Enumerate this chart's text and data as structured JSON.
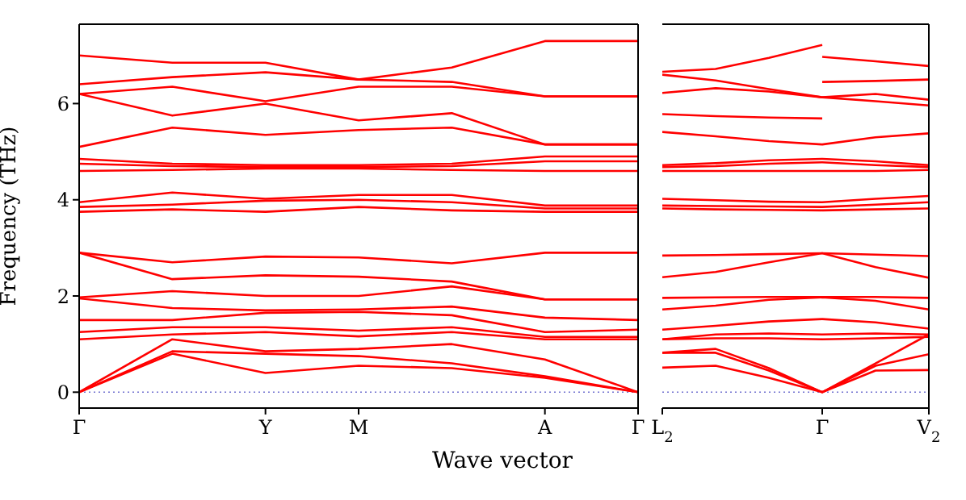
{
  "chart_data": [
    {
      "type": "line",
      "xlabel": "Wave vector",
      "ylabel": "Frequency (THz)",
      "categories": [
        "Γ",
        null,
        "Y",
        "M",
        null,
        "A",
        "Γ"
      ],
      "ylim": [
        -0.33,
        7.65
      ],
      "yticks": [
        0,
        2,
        4,
        6
      ],
      "ref_lines": [
        {
          "axis": "y",
          "value": 0,
          "color": "#7070d0",
          "line_style": "dotted"
        }
      ],
      "series": [
        {
          "color": "#ff0000",
          "values": [
            7.0,
            6.85,
            6.85,
            6.5,
            6.75,
            7.3,
            7.3
          ]
        },
        {
          "color": "#ff0000",
          "values": [
            6.4,
            6.55,
            6.65,
            6.5,
            6.45,
            6.15,
            6.15
          ]
        },
        {
          "color": "#ff0000",
          "values": [
            6.2,
            6.35,
            6.05,
            6.35,
            6.35,
            6.15,
            6.15
          ]
        },
        {
          "color": "#ff0000",
          "values": [
            6.2,
            5.75,
            6.0,
            5.65,
            5.8,
            5.15,
            5.15
          ]
        },
        {
          "color": "#ff0000",
          "values": [
            5.1,
            5.5,
            5.35,
            5.45,
            5.5,
            5.15,
            5.15
          ]
        },
        {
          "color": "#ff0000",
          "values": [
            4.85,
            4.75,
            4.72,
            4.72,
            4.75,
            4.9,
            4.9
          ]
        },
        {
          "color": "#ff0000",
          "values": [
            4.75,
            4.7,
            4.68,
            4.68,
            4.7,
            4.8,
            4.8
          ]
        },
        {
          "color": "#ff0000",
          "values": [
            4.6,
            4.62,
            4.65,
            4.65,
            4.62,
            4.6,
            4.6
          ]
        },
        {
          "color": "#ff0000",
          "values": [
            3.95,
            4.15,
            4.02,
            4.1,
            4.1,
            3.88,
            3.88
          ]
        },
        {
          "color": "#ff0000",
          "values": [
            3.85,
            3.9,
            3.98,
            4.0,
            3.95,
            3.82,
            3.82
          ]
        },
        {
          "color": "#ff0000",
          "values": [
            3.75,
            3.8,
            3.75,
            3.85,
            3.78,
            3.75,
            3.75
          ]
        },
        {
          "color": "#ff0000",
          "values": [
            2.9,
            2.7,
            2.82,
            2.8,
            2.68,
            2.9,
            2.9
          ]
        },
        {
          "color": "#ff0000",
          "values": [
            2.9,
            2.35,
            2.43,
            2.4,
            2.3,
            1.93,
            1.93
          ]
        },
        {
          "color": "#ff0000",
          "values": [
            1.97,
            2.1,
            2.0,
            2.0,
            2.2,
            1.93,
            1.93
          ]
        },
        {
          "color": "#ff0000",
          "values": [
            1.95,
            1.75,
            1.7,
            1.72,
            1.78,
            1.55,
            1.5
          ]
        },
        {
          "color": "#ff0000",
          "values": [
            1.5,
            1.5,
            1.65,
            1.67,
            1.6,
            1.25,
            1.3
          ]
        },
        {
          "color": "#ff0000",
          "values": [
            1.25,
            1.35,
            1.35,
            1.28,
            1.35,
            1.15,
            1.15
          ]
        },
        {
          "color": "#ff0000",
          "values": [
            1.1,
            1.2,
            1.25,
            1.16,
            1.25,
            1.1,
            1.1
          ]
        },
        {
          "color": "#ff0000",
          "values": [
            0,
            1.1,
            0.85,
            0.9,
            1.0,
            0.68,
            0
          ]
        },
        {
          "color": "#ff0000",
          "values": [
            0,
            0.85,
            0.8,
            0.75,
            0.6,
            0.33,
            0
          ]
        },
        {
          "color": "#ff0000",
          "values": [
            0,
            0.8,
            0.4,
            0.55,
            0.5,
            0.3,
            0
          ]
        }
      ]
    },
    {
      "type": "line",
      "categories": [
        "L$_{2}$",
        null,
        null,
        "Γ",
        null,
        "V$_{2}$"
      ],
      "ylim": [
        -0.33,
        7.65
      ],
      "yticks": [
        0,
        2,
        4,
        6
      ],
      "tick_labels": "x",
      "ref_lines": [
        {
          "axis": "y",
          "value": 0,
          "color": "#7070d0",
          "line_style": "dotted"
        }
      ],
      "series": [
        {
          "color": "#ff0000",
          "values": [
            6.66,
            6.72,
            6.95,
            7.22,
            null,
            null
          ]
        },
        {
          "color": "#ff0000",
          "values": [
            null,
            null,
            null,
            6.97,
            6.88,
            6.78
          ]
        },
        {
          "color": "#ff0000",
          "values": [
            6.6,
            6.48,
            6.3,
            6.13,
            6.05,
            5.96
          ]
        },
        {
          "color": "#ff0000",
          "values": [
            6.22,
            6.32,
            6.25,
            6.13,
            6.2,
            6.08
          ]
        },
        {
          "color": "#ff0000",
          "values": [
            5.78,
            5.74,
            5.71,
            5.69,
            null,
            null
          ]
        },
        {
          "color": "#ff0000",
          "values": [
            null,
            null,
            null,
            6.45,
            6.47,
            6.5
          ]
        },
        {
          "color": "#ff0000",
          "values": [
            5.41,
            5.32,
            5.22,
            5.15,
            5.3,
            5.38
          ]
        },
        {
          "color": "#ff0000",
          "values": [
            4.72,
            4.76,
            4.82,
            4.85,
            4.8,
            4.72
          ]
        },
        {
          "color": "#ff0000",
          "values": [
            4.68,
            4.7,
            4.75,
            4.78,
            4.72,
            4.68
          ]
        },
        {
          "color": "#ff0000",
          "values": [
            4.6,
            4.6,
            4.6,
            4.6,
            4.6,
            4.62
          ]
        },
        {
          "color": "#ff0000",
          "values": [
            4.02,
            3.99,
            3.96,
            3.95,
            4.02,
            4.08
          ]
        },
        {
          "color": "#ff0000",
          "values": [
            3.88,
            3.87,
            3.86,
            3.85,
            3.9,
            3.95
          ]
        },
        {
          "color": "#ff0000",
          "values": [
            3.82,
            3.8,
            3.79,
            3.78,
            3.8,
            3.82
          ]
        },
        {
          "color": "#ff0000",
          "values": [
            2.84,
            2.85,
            2.87,
            2.89,
            2.86,
            2.83
          ]
        },
        {
          "color": "#ff0000",
          "values": [
            2.39,
            2.5,
            2.7,
            2.89,
            2.6,
            2.38
          ]
        },
        {
          "color": "#ff0000",
          "values": [
            1.96,
            1.97,
            1.98,
            1.98,
            1.98,
            1.96
          ]
        },
        {
          "color": "#ff0000",
          "values": [
            1.72,
            1.8,
            1.92,
            1.97,
            1.9,
            1.72
          ]
        },
        {
          "color": "#ff0000",
          "values": [
            1.3,
            1.38,
            1.47,
            1.52,
            1.45,
            1.32
          ]
        },
        {
          "color": "#ff0000",
          "values": [
            1.1,
            1.2,
            1.22,
            1.2,
            1.22,
            1.2
          ]
        },
        {
          "color": "#ff0000",
          "values": [
            1.1,
            1.12,
            1.12,
            1.1,
            1.12,
            1.15
          ]
        },
        {
          "color": "#ff0000",
          "values": [
            0.82,
            0.9,
            0.5,
            0,
            0.55,
            0.79
          ]
        },
        {
          "color": "#ff0000",
          "values": [
            0.51,
            0.55,
            0.3,
            0,
            0.45,
            0.46
          ]
        },
        {
          "color": "#ff0000",
          "values": [
            0.82,
            0.82,
            0.45,
            0,
            0.6,
            1.2
          ]
        }
      ]
    }
  ]
}
